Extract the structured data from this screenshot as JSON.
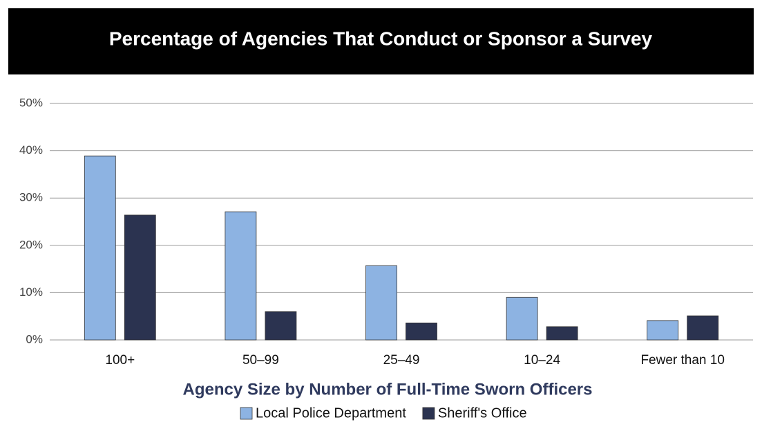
{
  "chart_data": {
    "type": "bar",
    "title": "Percentage of Agencies That Conduct or Sponsor  a  Survey",
    "x_label": "Agency Size by Number of Full-Time Sworn Officers",
    "categories": [
      "100+",
      "50–99",
      "25–49",
      "10–24",
      "Fewer than 10"
    ],
    "series": [
      {
        "name": "Local Police Department",
        "color": "#8db3e2",
        "values": [
          38.9,
          27.1,
          15.7,
          9.0,
          4.1
        ]
      },
      {
        "name": "Sheriff's Office",
        "color": "#2b3350",
        "values": [
          26.4,
          6.0,
          3.6,
          2.8,
          5.1
        ]
      }
    ],
    "ylim": [
      0,
      50
    ],
    "yticks": [
      {
        "value": 0,
        "label": "0%"
      },
      {
        "value": 10,
        "label": "10%"
      },
      {
        "value": 20,
        "label": "20%"
      },
      {
        "value": 30,
        "label": "30%"
      },
      {
        "value": 40,
        "label": "40%"
      },
      {
        "value": 50,
        "label": "50%"
      }
    ],
    "grid": true,
    "legend": "bottom"
  }
}
